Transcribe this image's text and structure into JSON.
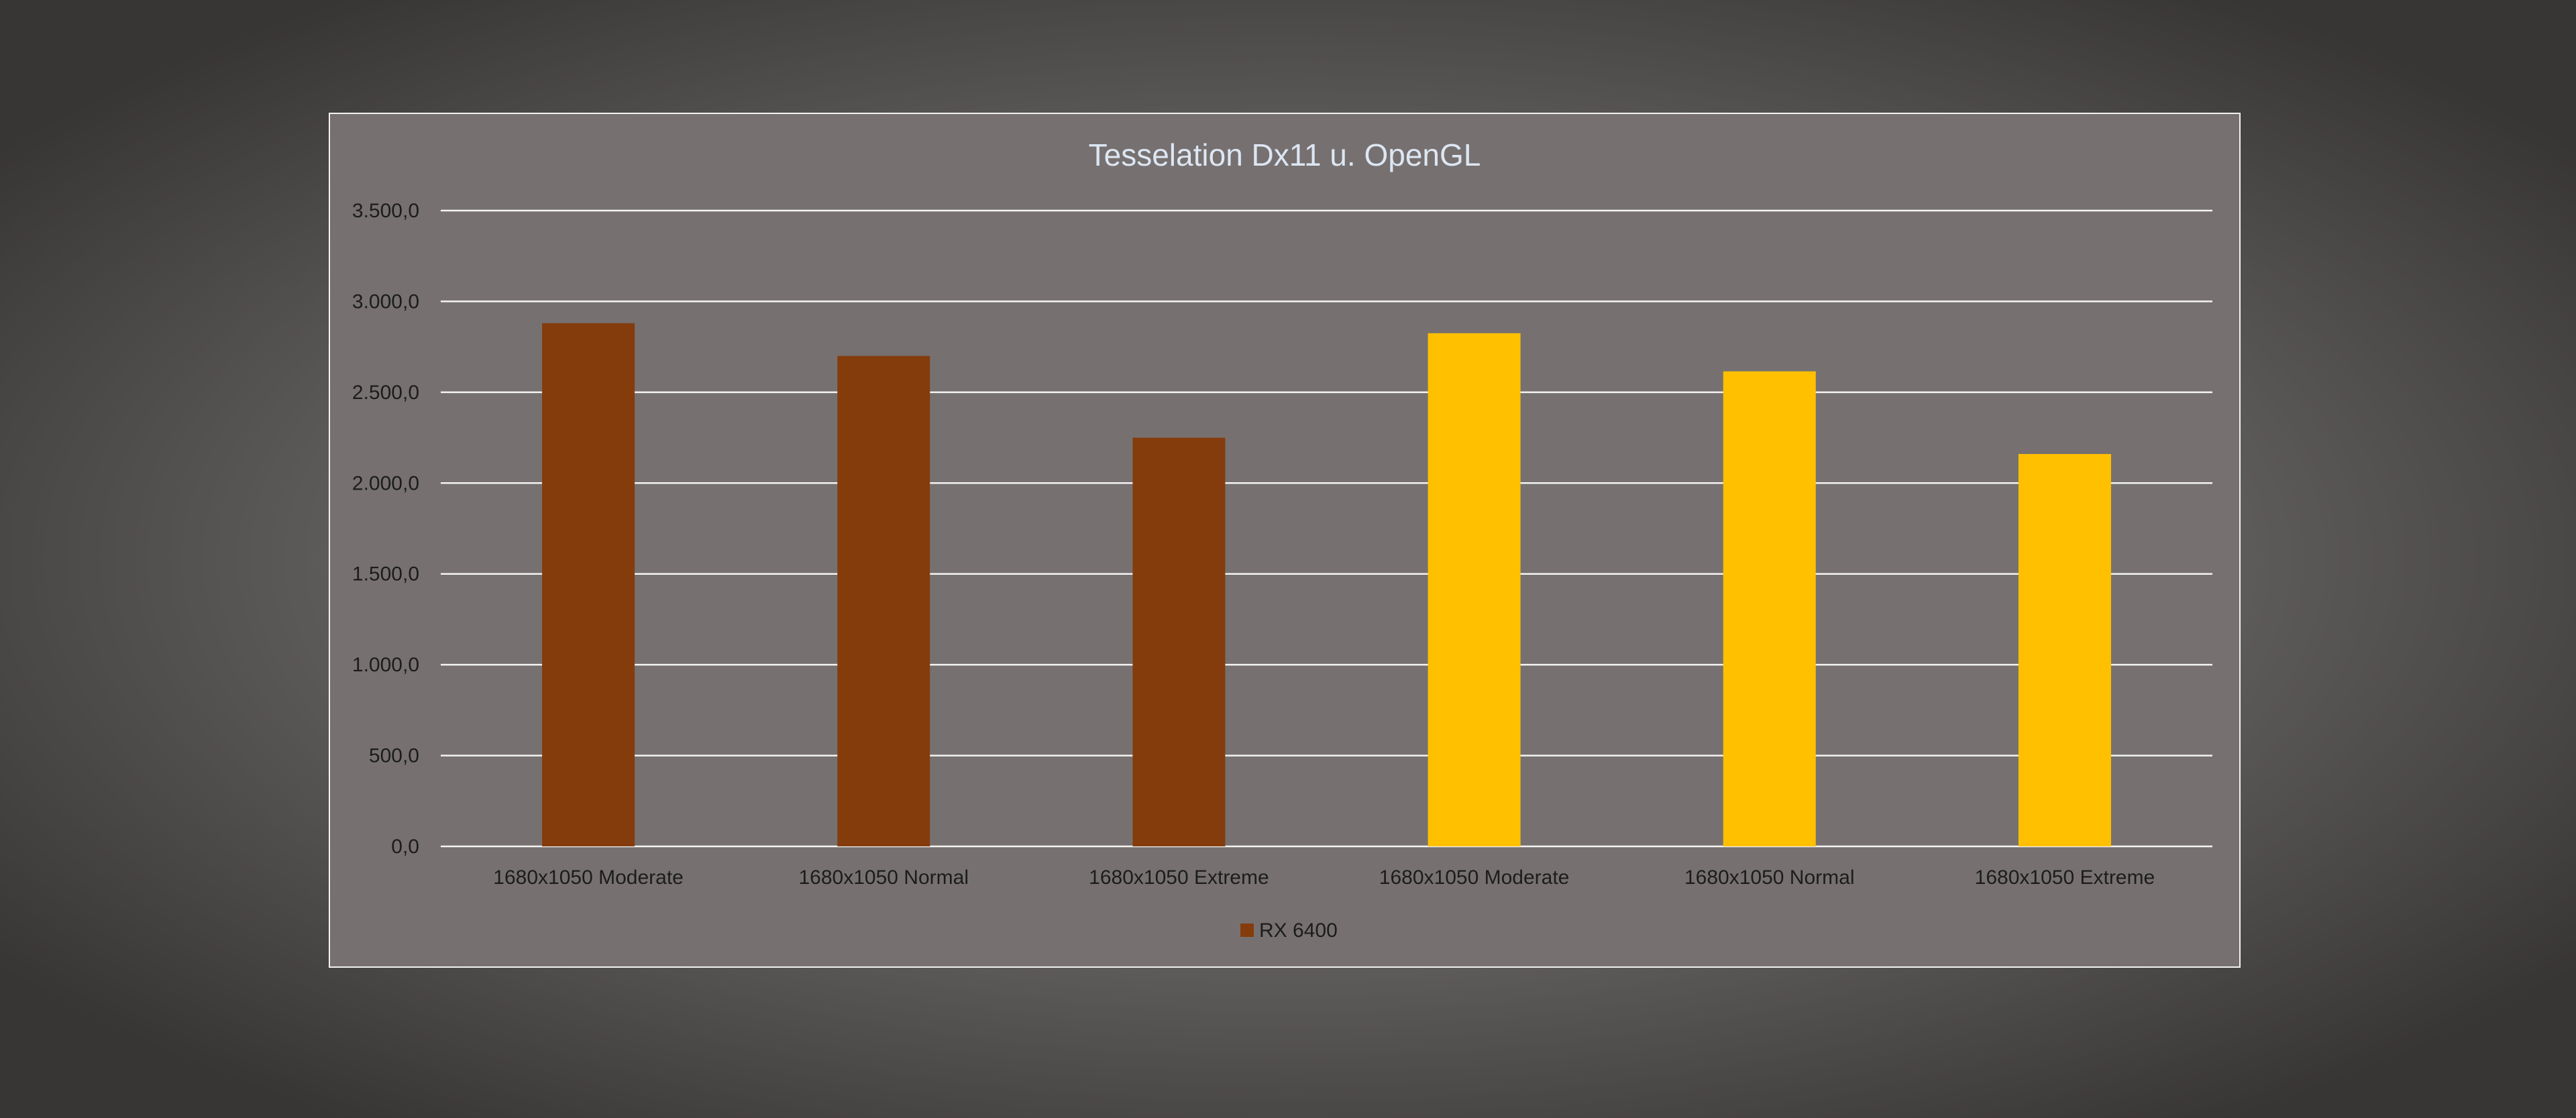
{
  "chart_data": {
    "type": "bar",
    "title": "Tesselation Dx11 u. OpenGL",
    "xlabel": "",
    "ylabel": "",
    "ylim": [
      0,
      3500
    ],
    "yticks": [
      0,
      500,
      1000,
      1500,
      2000,
      2500,
      3000,
      3500
    ],
    "ytick_labels": [
      "0,0",
      "500,0",
      "1.000,0",
      "1.500,0",
      "2.000,0",
      "2.500,0",
      "3.000,0",
      "3.500,0"
    ],
    "grid": true,
    "categories": [
      "1680x1050 Moderate",
      "1680x1050 Normal",
      "1680x1050 Extreme",
      "1680x1050 Moderate",
      "1680x1050 Normal",
      "1680x1050 Extreme"
    ],
    "values": [
      2880,
      2700,
      2250,
      2825,
      2615,
      2160
    ],
    "bar_colors": [
      "#843c0c",
      "#843c0c",
      "#843c0c",
      "#ffc000",
      "#ffc000",
      "#ffc000"
    ],
    "legend": {
      "position": "bottom",
      "entries": [
        {
          "name": "RX 6400",
          "color": "#843c0c"
        }
      ]
    }
  }
}
